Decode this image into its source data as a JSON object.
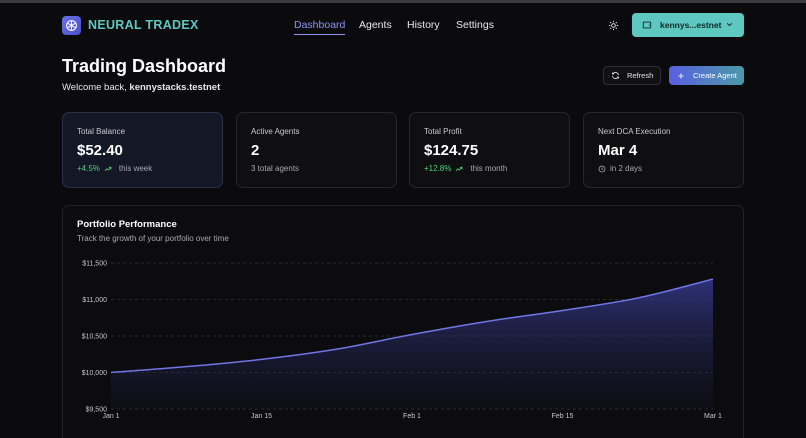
{
  "app": {
    "name": "NEURAL TRADEX"
  },
  "nav": [
    {
      "label": "Dashboard",
      "active": true
    },
    {
      "label": "Agents",
      "active": false
    },
    {
      "label": "History",
      "active": false
    },
    {
      "label": "Settings",
      "active": false
    }
  ],
  "wallet": {
    "label": "kennys...estnet"
  },
  "page": {
    "title": "Trading Dashboard",
    "welcome_prefix": "Welcome back, ",
    "username": "kennystacks.testnet"
  },
  "actions": {
    "refresh_label": "Refresh",
    "create_label": "Create Agent"
  },
  "cards": [
    {
      "label": "Total Balance",
      "value": "$52.40",
      "change": "+4.5%",
      "period": "this week"
    },
    {
      "label": "Active Agents",
      "value": "2",
      "sub": "3 total agents"
    },
    {
      "label": "Total Profit",
      "value": "$124.75",
      "change": "+12.8%",
      "period": "this month"
    },
    {
      "label": "Next DCA Execution",
      "value": "Mar 4",
      "sub": "in 2 days"
    }
  ],
  "portfolio": {
    "title": "Portfolio Performance",
    "subtitle": "Track the growth of your portfolio over time"
  },
  "colors": {
    "accent": "#8d94f2",
    "teal": "#5ec7bf",
    "positive": "#4fd17a",
    "line": "#7076e6"
  },
  "chart_data": {
    "type": "area",
    "x_ticks": [
      "Jan 1",
      "Jan 15",
      "Feb 1",
      "Feb 15",
      "Mar 1"
    ],
    "y_ticks": [
      "$9,500",
      "$10,000",
      "$10,500",
      "$11,000",
      "$11,500"
    ],
    "ylim": [
      9500,
      11500
    ],
    "grid": "horizontal-dashed",
    "series": [
      {
        "x_index": [
          0,
          0.5,
          1,
          1.5,
          2,
          2.5,
          3,
          3.5,
          4
        ],
        "values": [
          10000,
          10080,
          10180,
          10320,
          10520,
          10700,
          10850,
          11020,
          11280
        ]
      }
    ]
  }
}
